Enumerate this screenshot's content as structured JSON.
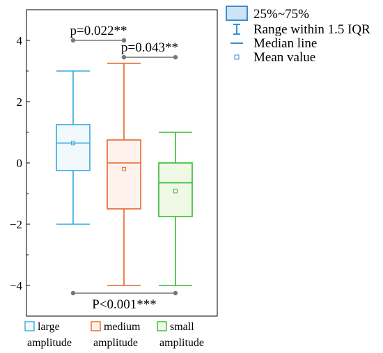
{
  "chart_data": {
    "type": "box",
    "ylim": [
      -5,
      5
    ],
    "yticks": [
      -4,
      -2,
      0,
      2,
      4
    ],
    "ytick_labels": [
      "−4",
      "−2",
      "0",
      "2",
      "4"
    ],
    "categories": [
      {
        "label_lines": [
          "large",
          "amplitude"
        ],
        "color": "#33aadd",
        "fill": "#f2f9fc",
        "whisker_low": -2.0,
        "q1": -0.25,
        "median": 0.65,
        "q3": 1.25,
        "whisker_high": 3.0,
        "mean": 0.65
      },
      {
        "label_lines": [
          "medium",
          "amplitude"
        ],
        "color": "#e8642a",
        "fill": "#fdf3ec",
        "whisker_low": -4.0,
        "q1": -1.5,
        "median": 0.0,
        "q3": 0.75,
        "whisker_high": 3.25,
        "mean": -0.2
      },
      {
        "label_lines": [
          "small",
          "amplitude"
        ],
        "color": "#33bb33",
        "fill": "#eef8e4",
        "whisker_low": -4.0,
        "q1": -1.75,
        "median": -0.65,
        "q3": 0.0,
        "whisker_high": 1.0,
        "mean": -0.92
      }
    ],
    "significance": [
      {
        "from": 0,
        "to": 1,
        "y": 4.0,
        "label": "p=0.022**",
        "label_pos": "above"
      },
      {
        "from": 1,
        "to": 2,
        "y": 3.45,
        "label": "p=0.043**",
        "label_pos": "above"
      },
      {
        "from": 0,
        "to": 2,
        "y": -4.25,
        "label": "P<0.001***",
        "label_pos": "below"
      }
    ],
    "legend": {
      "position": "top-right",
      "entries": [
        {
          "symbol": "box",
          "label": "25%~75%",
          "color": "#3a8ed6"
        },
        {
          "symbol": "whisker",
          "label": "Range within 1.5 IQR",
          "color": "#3a8ed6"
        },
        {
          "symbol": "median",
          "label": "Median line",
          "color": "#3a8ed6"
        },
        {
          "symbol": "mean",
          "label": "Mean value",
          "color": "#3a8ed6"
        }
      ]
    },
    "sig_color": "#777777"
  }
}
